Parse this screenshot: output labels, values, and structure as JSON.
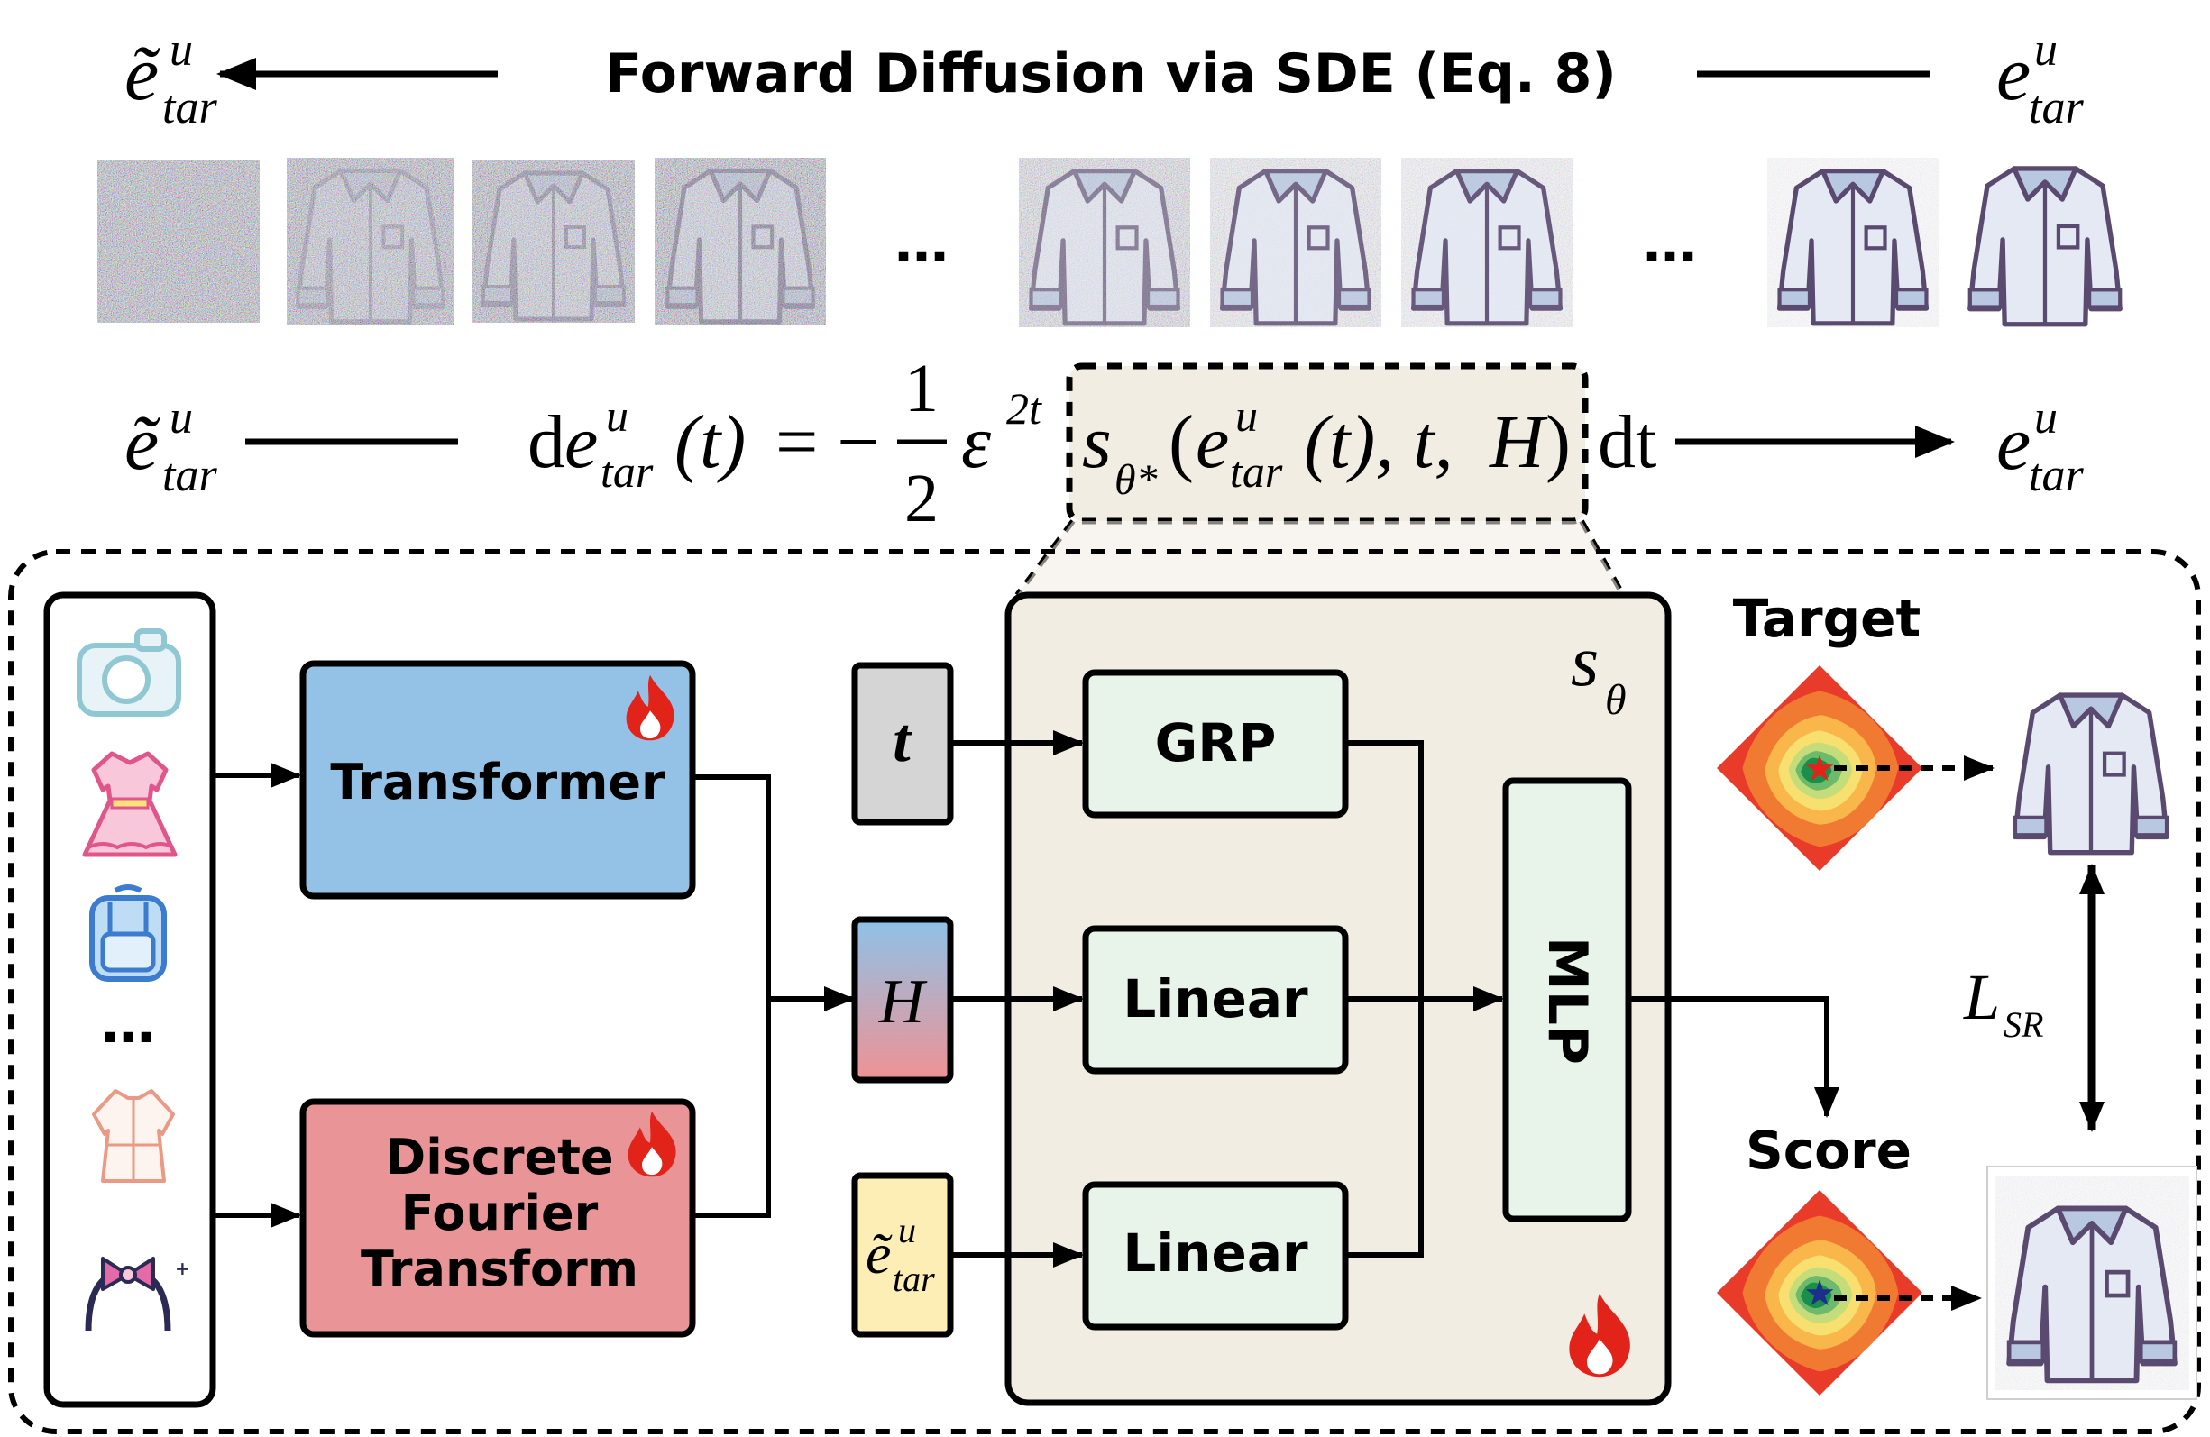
{
  "top_row": {
    "left_symbol": "ẽ",
    "right_symbol": "e",
    "sup": "u",
    "sub": "tar",
    "title": "Forward Diffusion via SDE (Eq. 8)",
    "ellipsis": "…"
  },
  "equation": {
    "left_symbol": "ẽ",
    "lhs_d": "d",
    "e": "e",
    "sup": "u",
    "sub": "tar",
    "t_paren": "(t)",
    "equals_minus": "= −",
    "frac_num": "1",
    "frac_den": "2",
    "epsilon": "ε",
    "exp": "2t",
    "s": "s",
    "s_sub": "θ*",
    "args_open": "(",
    "args_rest": "(t), t, ",
    "H": "H",
    "args_close": ")",
    "dt": "dt",
    "right_symbol": "e"
  },
  "modules": {
    "transformer": "Transformer",
    "dft_lines": [
      "Discrete",
      "Fourier",
      "Transform"
    ],
    "t_box": "t",
    "H_box": "H",
    "e_box_symbol": "ẽ",
    "e_box_sup": "u",
    "e_box_sub": "tar",
    "grp": "GRP",
    "linear_top": "Linear",
    "linear_bottom": "Linear",
    "mlp": "MLP",
    "s_theta": "s",
    "s_theta_sub": "θ",
    "input_ellipsis": "…"
  },
  "right_panel": {
    "target": "Target",
    "score": "Score",
    "loss": "L",
    "loss_sub": "SR"
  },
  "colors": {
    "transformer_fill": "#94c2e6",
    "dft_fill": "#e99598",
    "t_fill": "#d5d5d5",
    "e_fill": "#fdeeb6",
    "module_fill": "#e8f3ea",
    "score_panel_fill": "#f2ede3",
    "fire": "#e2231a"
  }
}
